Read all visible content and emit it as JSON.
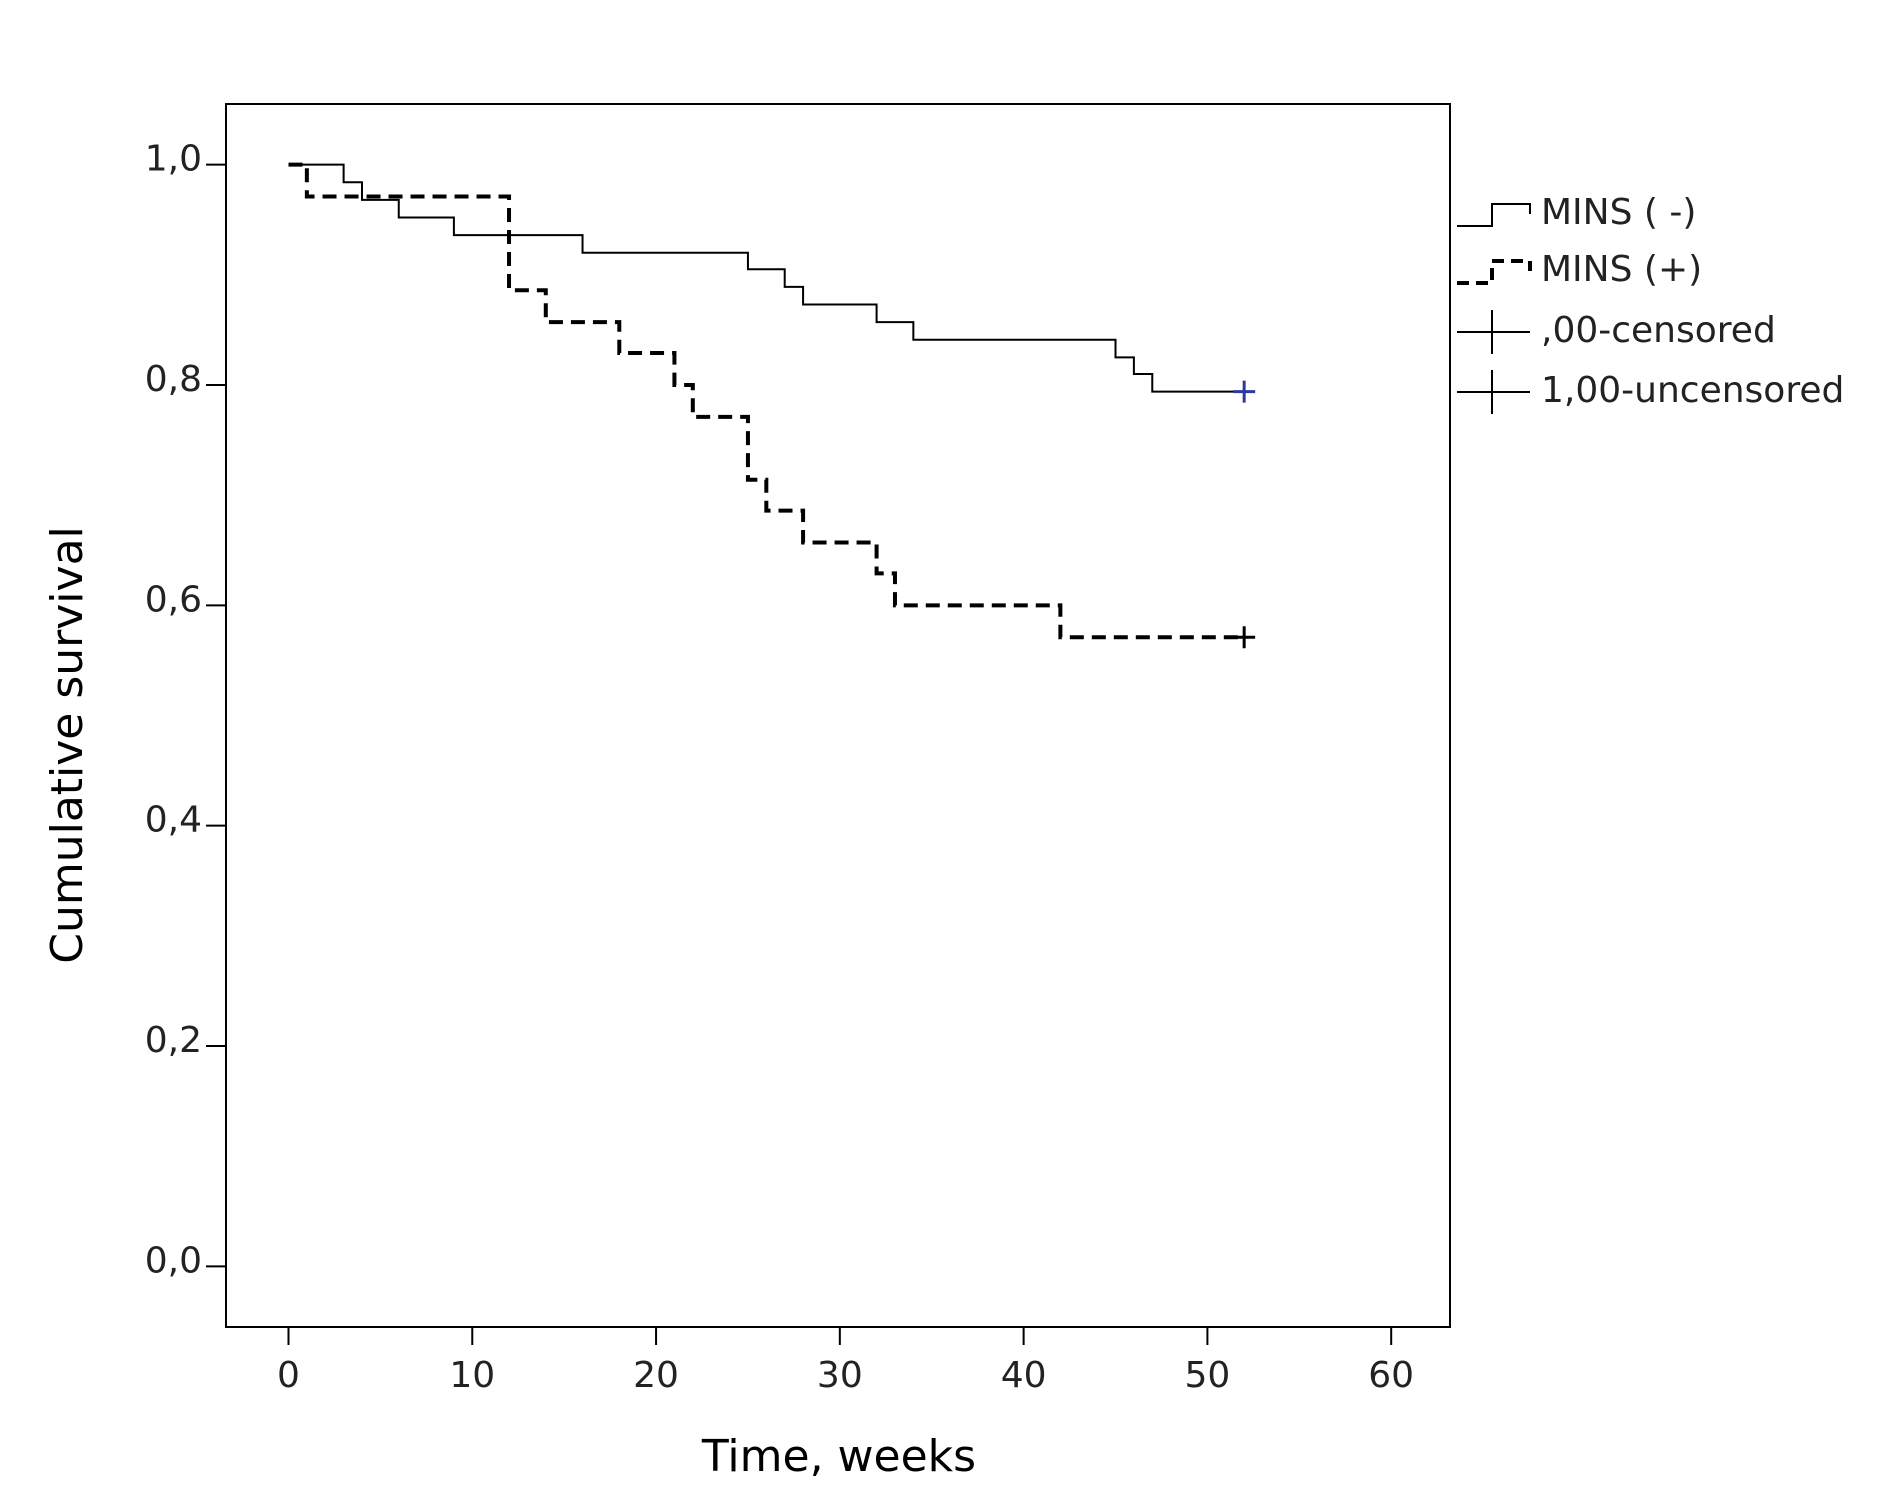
{
  "chart_data": {
    "type": "step",
    "xlabel": "Time, weeks",
    "ylabel": "Cumulative survival",
    "xlim": [
      -3.4,
      63.2
    ],
    "ylim": [
      -0.055,
      1.055
    ],
    "xticks": [
      0,
      10,
      20,
      30,
      40,
      50,
      60
    ],
    "yticks": [
      {
        "value": 0,
        "label": "0,0"
      },
      {
        "value": 0.2,
        "label": "0,2"
      },
      {
        "value": 0.4,
        "label": "0,4"
      },
      {
        "value": 0.6,
        "label": "0,6"
      },
      {
        "value": 0.8,
        "label": "0,8"
      },
      {
        "value": 1,
        "label": "1,0"
      }
    ],
    "series": [
      {
        "name": "MINS ( -)",
        "color": "#000000",
        "dash": false,
        "censor_color": "#2b3a9c",
        "x": [
          0,
          3,
          4,
          6,
          9,
          16,
          25,
          27,
          28,
          32,
          34,
          45,
          46,
          47,
          52
        ],
        "values": [
          1.0,
          0.984,
          0.968,
          0.952,
          0.936,
          0.92,
          0.905,
          0.889,
          0.873,
          0.857,
          0.841,
          0.825,
          0.81,
          0.794,
          0.794
        ]
      },
      {
        "name": "MINS (+)",
        "color": "#000000",
        "dash": true,
        "censor_color": "#000000",
        "x": [
          0,
          1,
          12,
          14,
          18,
          21,
          22,
          25,
          26,
          28,
          32,
          33,
          42,
          52
        ],
        "values": [
          1.0,
          0.971,
          0.886,
          0.857,
          0.829,
          0.8,
          0.771,
          0.714,
          0.686,
          0.657,
          0.629,
          0.6,
          0.571,
          0.571
        ]
      }
    ],
    "censor_legend": [
      ",00-censored",
      "1,00-uncensored"
    ]
  }
}
